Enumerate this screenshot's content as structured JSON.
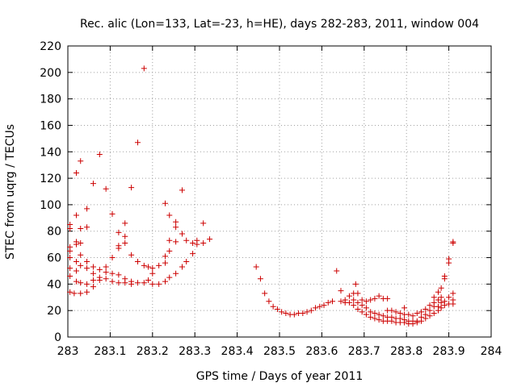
{
  "chart_data": {
    "type": "scatter",
    "title": "Rec. alic (Lon=133, Lat=-23, h=HE), days 282-283, 2011, window 004",
    "xlabel": "GPS time / Days of year 2011",
    "ylabel": "STEC from uqrg / TECUs",
    "xlim": [
      283,
      284
    ],
    "ylim": [
      0,
      220
    ],
    "x_ticks": [
      "283",
      "283.1",
      "283.2",
      "283.3",
      "283.4",
      "283.5",
      "283.6",
      "283.7",
      "283.8",
      "283.9",
      "284"
    ],
    "y_ticks": [
      "0",
      "20",
      "40",
      "60",
      "80",
      "100",
      "120",
      "140",
      "160",
      "180",
      "200",
      "220"
    ],
    "grid": true,
    "marker": "+",
    "color": "#cc0000",
    "points": [
      [
        283.005,
        82
      ],
      [
        283.005,
        85
      ],
      [
        283.005,
        68
      ],
      [
        283.005,
        65
      ],
      [
        283.005,
        60
      ],
      [
        283.005,
        52
      ],
      [
        283.005,
        46
      ],
      [
        283.005,
        34
      ],
      [
        283.015,
        33
      ],
      [
        283.02,
        124
      ],
      [
        283.02,
        92
      ],
      [
        283.02,
        72
      ],
      [
        283.02,
        70
      ],
      [
        283.02,
        57
      ],
      [
        283.02,
        50
      ],
      [
        283.02,
        42
      ],
      [
        283.03,
        133
      ],
      [
        283.03,
        82
      ],
      [
        283.03,
        71
      ],
      [
        283.03,
        62
      ],
      [
        283.03,
        54
      ],
      [
        283.03,
        41
      ],
      [
        283.03,
        33
      ],
      [
        283.045,
        97
      ],
      [
        283.045,
        83
      ],
      [
        283.045,
        57
      ],
      [
        283.045,
        52
      ],
      [
        283.045,
        40
      ],
      [
        283.045,
        34
      ],
      [
        283.06,
        116
      ],
      [
        283.06,
        53
      ],
      [
        283.06,
        48
      ],
      [
        283.06,
        43
      ],
      [
        283.06,
        38
      ],
      [
        283.075,
        138
      ],
      [
        283.075,
        51
      ],
      [
        283.075,
        45
      ],
      [
        283.075,
        43
      ],
      [
        283.09,
        112
      ],
      [
        283.09,
        53
      ],
      [
        283.09,
        49
      ],
      [
        283.09,
        44
      ],
      [
        283.105,
        93
      ],
      [
        283.105,
        60
      ],
      [
        283.105,
        48
      ],
      [
        283.105,
        42
      ],
      [
        283.12,
        79
      ],
      [
        283.12,
        69
      ],
      [
        283.12,
        67
      ],
      [
        283.12,
        47
      ],
      [
        283.12,
        41
      ],
      [
        283.135,
        86
      ],
      [
        283.135,
        76
      ],
      [
        283.135,
        71
      ],
      [
        283.135,
        44
      ],
      [
        283.135,
        41
      ],
      [
        283.15,
        113
      ],
      [
        283.15,
        62
      ],
      [
        283.15,
        42
      ],
      [
        283.15,
        40
      ],
      [
        283.165,
        147
      ],
      [
        283.165,
        57
      ],
      [
        283.165,
        41
      ],
      [
        283.18,
        203
      ],
      [
        283.18,
        54
      ],
      [
        283.18,
        41
      ],
      [
        283.19,
        53
      ],
      [
        283.19,
        43
      ],
      [
        283.2,
        52
      ],
      [
        283.2,
        48
      ],
      [
        283.2,
        40
      ],
      [
        283.215,
        54
      ],
      [
        283.215,
        40
      ],
      [
        283.23,
        101
      ],
      [
        283.23,
        61
      ],
      [
        283.23,
        56
      ],
      [
        283.23,
        42
      ],
      [
        283.24,
        92
      ],
      [
        283.24,
        73
      ],
      [
        283.24,
        65
      ],
      [
        283.24,
        45
      ],
      [
        283.255,
        87
      ],
      [
        283.255,
        83
      ],
      [
        283.255,
        72
      ],
      [
        283.255,
        48
      ],
      [
        283.27,
        111
      ],
      [
        283.27,
        78
      ],
      [
        283.27,
        53
      ],
      [
        283.28,
        73
      ],
      [
        283.28,
        57
      ],
      [
        283.295,
        71
      ],
      [
        283.295,
        63
      ],
      [
        283.305,
        73
      ],
      [
        283.305,
        70
      ],
      [
        283.32,
        86
      ],
      [
        283.32,
        71
      ],
      [
        283.335,
        74
      ],
      [
        283.445,
        53
      ],
      [
        283.455,
        44
      ],
      [
        283.465,
        33
      ],
      [
        283.475,
        27
      ],
      [
        283.485,
        23
      ],
      [
        283.495,
        21
      ],
      [
        283.505,
        19
      ],
      [
        283.515,
        18
      ],
      [
        283.525,
        17
      ],
      [
        283.535,
        17
      ],
      [
        283.545,
        18
      ],
      [
        283.555,
        18
      ],
      [
        283.565,
        19
      ],
      [
        283.575,
        20
      ],
      [
        283.585,
        22
      ],
      [
        283.595,
        23
      ],
      [
        283.605,
        24
      ],
      [
        283.615,
        26
      ],
      [
        283.625,
        27
      ],
      [
        283.635,
        50
      ],
      [
        283.645,
        35
      ],
      [
        283.645,
        27
      ],
      [
        283.655,
        28
      ],
      [
        283.655,
        26
      ],
      [
        283.665,
        31
      ],
      [
        283.665,
        26
      ],
      [
        283.675,
        33
      ],
      [
        283.675,
        28
      ],
      [
        283.675,
        24
      ],
      [
        283.68,
        40
      ],
      [
        283.685,
        33
      ],
      [
        283.685,
        26
      ],
      [
        283.685,
        21
      ],
      [
        283.695,
        28
      ],
      [
        283.695,
        24
      ],
      [
        283.695,
        19
      ],
      [
        283.705,
        27
      ],
      [
        283.705,
        22
      ],
      [
        283.705,
        17
      ],
      [
        283.715,
        28
      ],
      [
        283.715,
        19
      ],
      [
        283.715,
        15
      ],
      [
        283.725,
        29
      ],
      [
        283.725,
        18
      ],
      [
        283.725,
        14
      ],
      [
        283.735,
        31
      ],
      [
        283.735,
        17
      ],
      [
        283.735,
        13
      ],
      [
        283.745,
        29
      ],
      [
        283.745,
        16
      ],
      [
        283.745,
        12
      ],
      [
        283.755,
        29
      ],
      [
        283.755,
        20
      ],
      [
        283.755,
        15
      ],
      [
        283.755,
        12
      ],
      [
        283.765,
        20
      ],
      [
        283.765,
        15
      ],
      [
        283.765,
        12
      ],
      [
        283.775,
        19
      ],
      [
        283.775,
        14
      ],
      [
        283.775,
        11
      ],
      [
        283.785,
        18
      ],
      [
        283.785,
        14
      ],
      [
        283.785,
        11
      ],
      [
        283.795,
        22
      ],
      [
        283.795,
        17
      ],
      [
        283.795,
        13
      ],
      [
        283.795,
        11
      ],
      [
        283.805,
        17
      ],
      [
        283.805,
        12
      ],
      [
        283.805,
        10
      ],
      [
        283.815,
        16
      ],
      [
        283.815,
        12
      ],
      [
        283.815,
        10
      ],
      [
        283.825,
        18
      ],
      [
        283.825,
        12
      ],
      [
        283.825,
        11
      ],
      [
        283.835,
        19
      ],
      [
        283.835,
        15
      ],
      [
        283.835,
        12
      ],
      [
        283.845,
        21
      ],
      [
        283.845,
        17
      ],
      [
        283.845,
        14
      ],
      [
        283.855,
        24
      ],
      [
        283.855,
        20
      ],
      [
        283.855,
        16
      ],
      [
        283.865,
        30
      ],
      [
        283.865,
        26
      ],
      [
        283.865,
        23
      ],
      [
        283.865,
        18
      ],
      [
        283.875,
        34
      ],
      [
        283.875,
        28
      ],
      [
        283.875,
        23
      ],
      [
        283.875,
        20
      ],
      [
        283.882,
        37
      ],
      [
        283.882,
        30
      ],
      [
        283.882,
        26
      ],
      [
        283.882,
        22
      ],
      [
        283.89,
        46
      ],
      [
        283.89,
        44
      ],
      [
        283.89,
        27
      ],
      [
        283.89,
        24
      ],
      [
        283.9,
        59
      ],
      [
        283.9,
        56
      ],
      [
        283.9,
        30
      ],
      [
        283.9,
        25
      ],
      [
        283.91,
        72
      ],
      [
        283.91,
        71
      ],
      [
        283.91,
        33
      ],
      [
        283.91,
        28
      ],
      [
        283.91,
        25
      ]
    ]
  }
}
